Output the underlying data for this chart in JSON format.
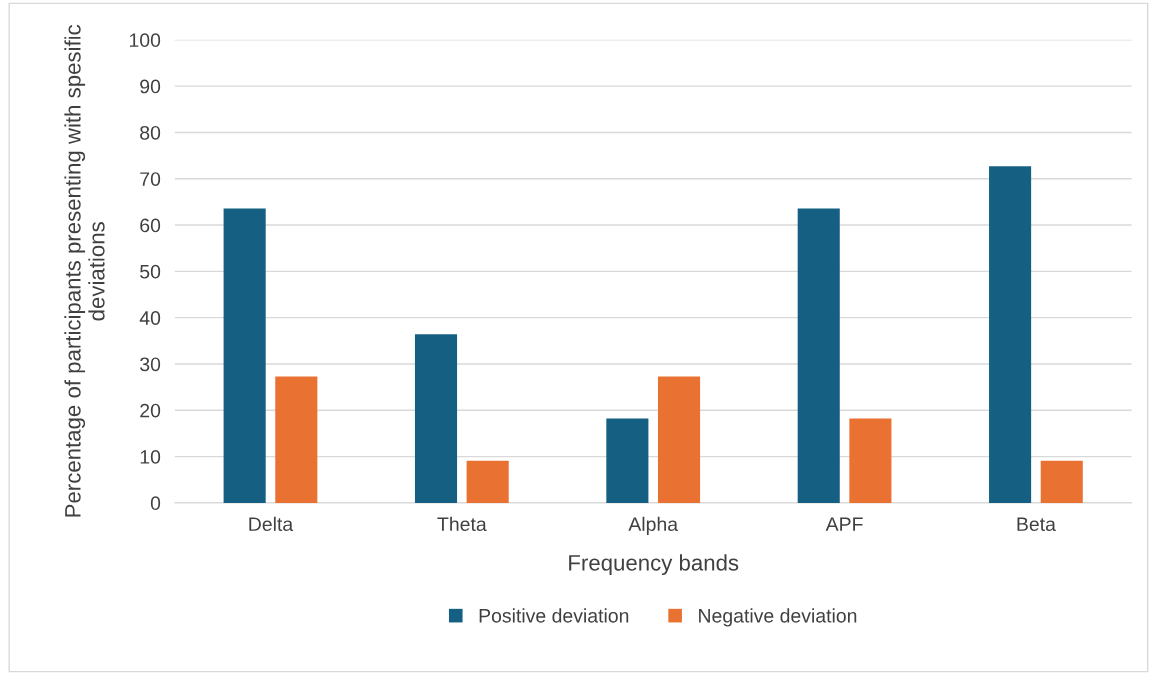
{
  "chart_data": {
    "type": "bar",
    "xlabel": "Frequency bands",
    "ylabel": "Percentage of participants presenting with spesific deviations",
    "categories": [
      "Delta",
      "Theta",
      "Alpha",
      "APF",
      "Beta"
    ],
    "series": [
      {
        "name": "Positive deviation",
        "color": "#156082",
        "values": [
          63.6,
          36.4,
          18.2,
          63.6,
          72.7
        ]
      },
      {
        "name": "Negative deviation",
        "color": "#e97132",
        "values": [
          27.3,
          9.1,
          27.3,
          18.2,
          9.1
        ]
      }
    ],
    "ylim": [
      0,
      100
    ],
    "yticks": [
      0,
      10,
      20,
      30,
      40,
      50,
      60,
      70,
      80,
      90,
      100
    ],
    "grid": "y",
    "legend": "bottom"
  }
}
